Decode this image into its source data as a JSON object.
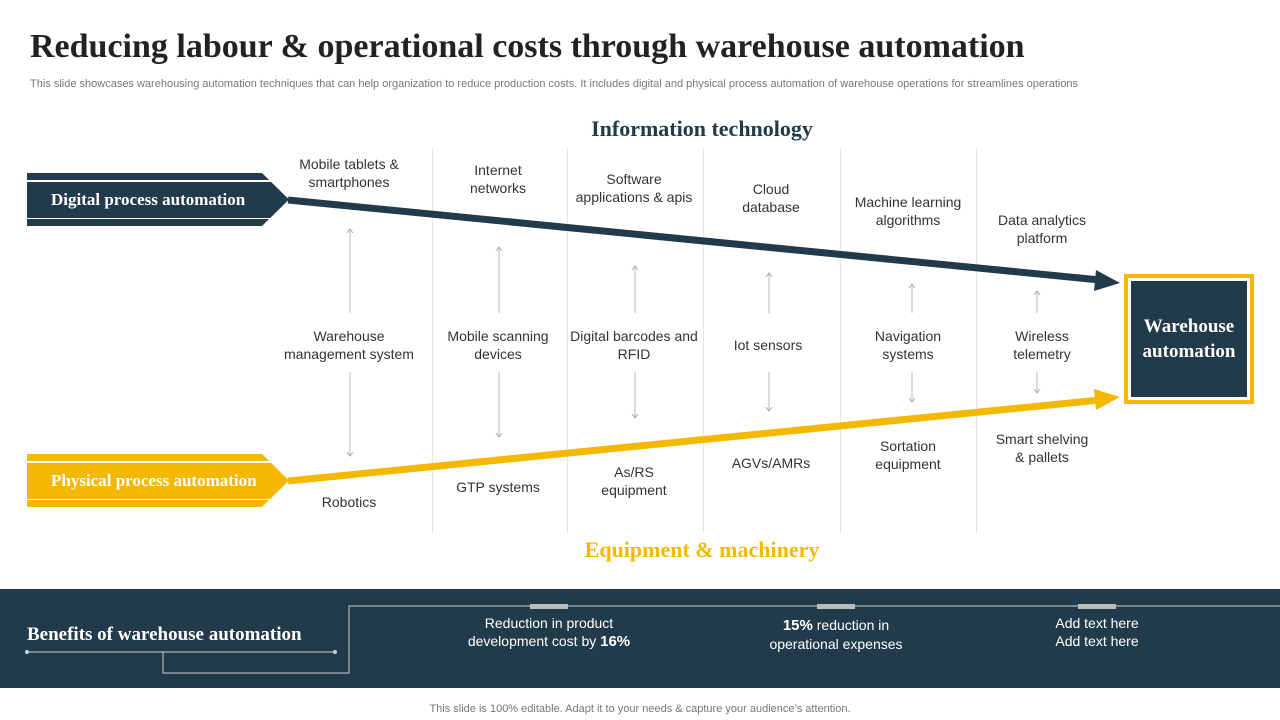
{
  "title": "Reducing labour & operational costs through warehouse automation",
  "subtitle": "This slide showcases warehousing automation techniques that can help organization to reduce production costs. It includes digital and physical process automation of warehouse operations for streamlines operations",
  "sections": {
    "top": "Information technology",
    "bottom": "Equipment & machinery"
  },
  "tags": {
    "digital": "Digital process automation",
    "physical": "Physical process automation"
  },
  "target": "Warehouse automation",
  "columns": [
    {
      "top": "Mobile tablets & smartphones",
      "middle": "Warehouse management system",
      "bottom": "Robotics"
    },
    {
      "top": "Internet networks",
      "middle": "Mobile scanning devices",
      "bottom": "GTP systems"
    },
    {
      "top": "Software applications & apis",
      "middle": "Digital barcodes and RFID",
      "bottom": "As/RS equipment"
    },
    {
      "top": "Cloud database",
      "middle": "Iot sensors",
      "bottom": "AGVs/AMRs"
    },
    {
      "top": "Machine learning algorithms",
      "middle": "Navigation systems",
      "bottom": "Sortation equipment"
    },
    {
      "top": "Data analytics platform",
      "middle": "Wireless telemetry",
      "bottom": "Smart shelving & pallets"
    }
  ],
  "benefits": {
    "heading": "Benefits of warehouse automation",
    "items": [
      {
        "pre": "Reduction in product development cost by ",
        "bold": "16%",
        "post": ""
      },
      {
        "pre": "",
        "bold": "15%",
        "post": " reduction in operational expenses"
      },
      {
        "pre": "Add text here Add text here",
        "bold": "",
        "post": ""
      }
    ]
  },
  "footer": "This slide is 100% editable. Adapt it to your needs & capture your audience’s attention.",
  "colors": {
    "navy": "#223b4b",
    "yellow": "#f5b800"
  }
}
